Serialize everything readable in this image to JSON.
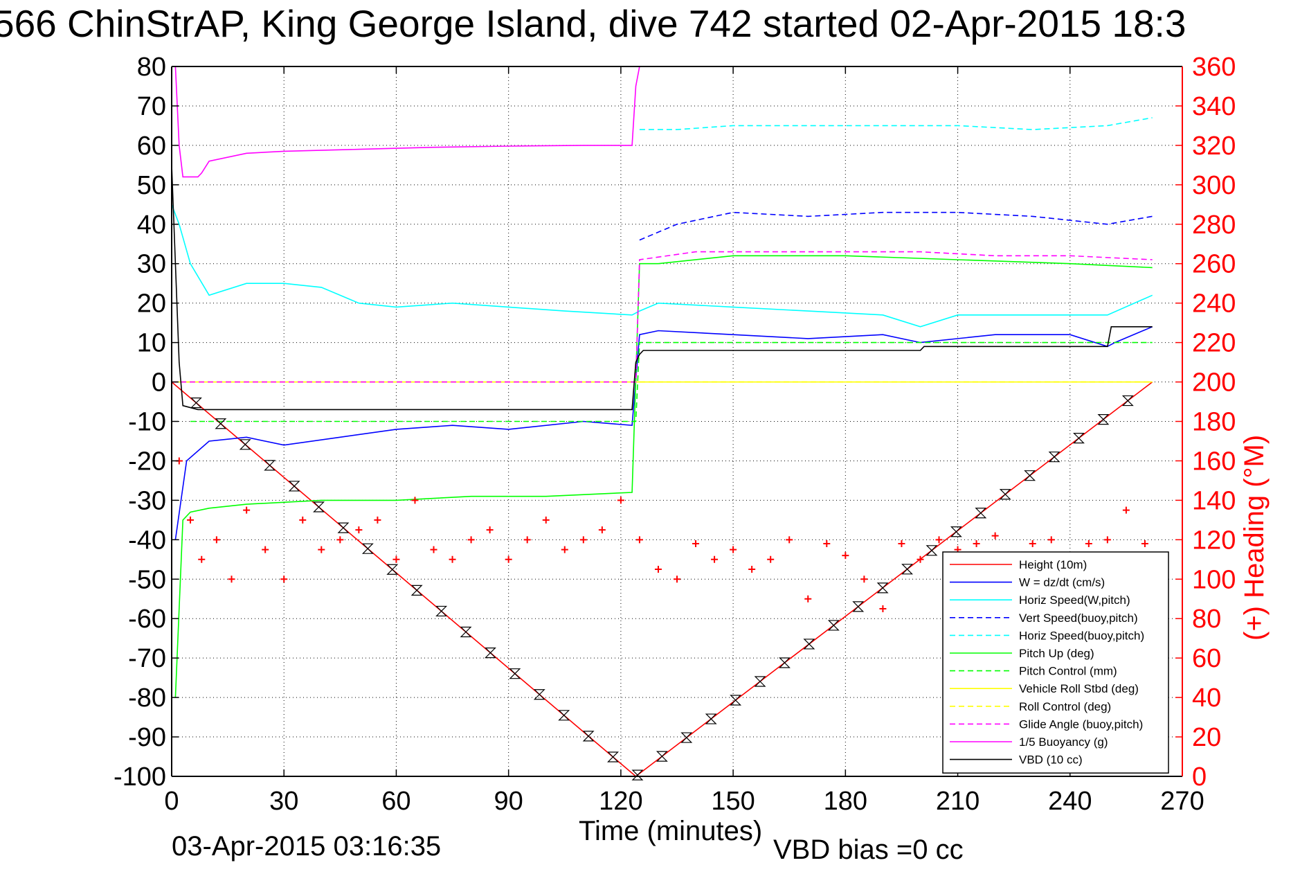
{
  "title": "566 ChinStrAP, King George Island, dive 742 started 02-Apr-2015 18:3",
  "footer": {
    "date": "03-Apr-2015 03:16:35",
    "bias": "VBD bias =0 cc"
  },
  "colors": {
    "height": "#ff0000",
    "w": "#0000ff",
    "horiz_speed": "#00ffff",
    "pitch": "#00ff00",
    "roll": "#ffff00",
    "buoyancy": "#ff00ff",
    "vbd": "#000000",
    "right_axis": "#ff0000"
  },
  "chart_data": {
    "type": "line",
    "xlabel": "Time (minutes)",
    "ylabel": "",
    "y2label": "(+) Heading (°M)",
    "xlim": [
      0,
      270
    ],
    "ylim": [
      -100,
      80
    ],
    "y2lim": [
      0,
      360
    ],
    "xticks": [
      "0",
      "30",
      "60",
      "90",
      "120",
      "150",
      "180",
      "210",
      "240",
      "270"
    ],
    "yticks": [
      "80",
      "70",
      "60",
      "50",
      "40",
      "30",
      "20",
      "10",
      "0",
      "-10",
      "-20",
      "-30",
      "-40",
      "-50",
      "-60",
      "-70",
      "-80",
      "-90",
      "-100"
    ],
    "y2ticks": [
      "360",
      "340",
      "320",
      "300",
      "280",
      "260",
      "240",
      "220",
      "200",
      "180",
      "160",
      "140",
      "120",
      "100",
      "80",
      "60",
      "40",
      "20",
      "0"
    ],
    "grid": true,
    "legend_position": "bottom-right",
    "series": [
      {
        "name": "Height (10m)",
        "style": "solid",
        "color": "#ff0000",
        "x": [
          0,
          124,
          262
        ],
        "y": [
          0,
          -100,
          0
        ]
      },
      {
        "name": "W = dz/dt (cm/s)",
        "style": "solid",
        "color": "#0000ff",
        "x": [
          1,
          4,
          10,
          20,
          30,
          45,
          60,
          75,
          90,
          110,
          123,
          125,
          130,
          150,
          170,
          190,
          200,
          220,
          240,
          250,
          252,
          262
        ],
        "y": [
          -40,
          -20,
          -15,
          -14,
          -16,
          -14,
          -12,
          -11,
          -12,
          -10,
          -11,
          12,
          13,
          12,
          11,
          12,
          10,
          12,
          12,
          9,
          10,
          14
        ]
      },
      {
        "name": "Horiz Speed(W,pitch)",
        "style": "solid",
        "color": "#00ffff",
        "x": [
          0,
          2,
          5,
          10,
          20,
          30,
          40,
          50,
          60,
          75,
          90,
          105,
          123,
          125,
          130,
          150,
          170,
          190,
          200,
          210,
          230,
          250,
          262
        ],
        "y": [
          45,
          40,
          30,
          22,
          25,
          25,
          24,
          20,
          19,
          20,
          19,
          18,
          17,
          18,
          20,
          19,
          18,
          17,
          14,
          17,
          17,
          17,
          22
        ]
      },
      {
        "name": "Vert Speed(buoy,pitch)",
        "style": "dashed",
        "color": "#0000ff",
        "x": [
          125,
          135,
          150,
          170,
          190,
          210,
          230,
          250,
          262
        ],
        "y": [
          36,
          40,
          43,
          42,
          43,
          43,
          42,
          40,
          42
        ]
      },
      {
        "name": "Horiz Speed(buoy,pitch)",
        "style": "dashed",
        "color": "#00ffff",
        "x": [
          125,
          135,
          150,
          170,
          190,
          210,
          230,
          250,
          262
        ],
        "y": [
          64,
          64,
          65,
          65,
          65,
          65,
          64,
          65,
          67
        ]
      },
      {
        "name": "Pitch Up (deg)",
        "style": "solid",
        "color": "#00ff00",
        "x": [
          1,
          3,
          5,
          10,
          20,
          40,
          60,
          80,
          100,
          123,
          125,
          130,
          150,
          180,
          210,
          240,
          262
        ],
        "y": [
          -80,
          -35,
          -33,
          -32,
          -31,
          -30,
          -30,
          -29,
          -29,
          -28,
          30,
          30,
          32,
          32,
          31,
          30,
          29
        ]
      },
      {
        "name": "Pitch Control (mm)",
        "style": "dashed",
        "color": "#00ff00",
        "x": [
          5,
          124,
          125,
          262
        ],
        "y": [
          -10,
          -10,
          10,
          10
        ]
      },
      {
        "name": "Vehicle Roll Stbd (deg)",
        "style": "solid",
        "color": "#ffff00",
        "x": [
          0,
          124,
          125,
          262
        ],
        "y": [
          0,
          0,
          0,
          0
        ]
      },
      {
        "name": "Roll Control (deg)",
        "style": "dashed",
        "color": "#ffff00",
        "x": [
          0,
          262
        ],
        "y": [
          0,
          0
        ]
      },
      {
        "name": "Glide Angle (buoy,pitch)",
        "style": "dashed",
        "color": "#ff00ff",
        "x": [
          0,
          124,
          125,
          140,
          160,
          180,
          200,
          220,
          240,
          262
        ],
        "y": [
          0,
          0,
          31,
          33,
          33,
          33,
          33,
          32,
          32,
          31
        ]
      },
      {
        "name": "1/5 Buoyancy (g)",
        "style": "solid",
        "color": "#ff00ff",
        "x": [
          1,
          2,
          3,
          7,
          8,
          10,
          20,
          30,
          50,
          70,
          90,
          110,
          122,
          123,
          124,
          125
        ],
        "y": [
          80,
          60,
          52,
          52,
          53,
          56,
          58,
          58.5,
          59,
          59.5,
          59.8,
          60,
          60,
          60,
          75,
          80
        ]
      },
      {
        "name": "VBD (10 cc)",
        "style": "solid",
        "color": "#000000",
        "x": [
          0,
          2,
          3,
          7,
          122,
          123,
          124,
          125,
          126,
          200,
          201,
          250,
          251,
          262
        ],
        "y": [
          55,
          5,
          -6,
          -7,
          -7,
          -7,
          5,
          7,
          8,
          8,
          9,
          9,
          14,
          14
        ]
      },
      {
        "name": "Heading",
        "axis": "right",
        "style": "markers",
        "color": "#ff0000",
        "x": [
          2,
          5,
          8,
          12,
          16,
          20,
          25,
          30,
          35,
          40,
          45,
          50,
          55,
          60,
          65,
          70,
          75,
          80,
          85,
          90,
          95,
          100,
          105,
          110,
          115,
          120,
          125,
          130,
          135,
          140,
          145,
          150,
          155,
          160,
          165,
          170,
          175,
          180,
          185,
          190,
          195,
          200,
          205,
          210,
          215,
          220,
          225,
          230,
          235,
          240,
          245,
          250,
          255,
          260
        ],
        "y": [
          160,
          130,
          110,
          120,
          100,
          135,
          115,
          100,
          130,
          115,
          120,
          125,
          130,
          110,
          140,
          115,
          110,
          120,
          125,
          110,
          120,
          130,
          115,
          120,
          125,
          140,
          120,
          105,
          100,
          118,
          110,
          115,
          105,
          110,
          120,
          90,
          118,
          112,
          100,
          85,
          118,
          110,
          120,
          115,
          118,
          122,
          110,
          118,
          120,
          112,
          118,
          120,
          135,
          118
        ]
      }
    ]
  }
}
